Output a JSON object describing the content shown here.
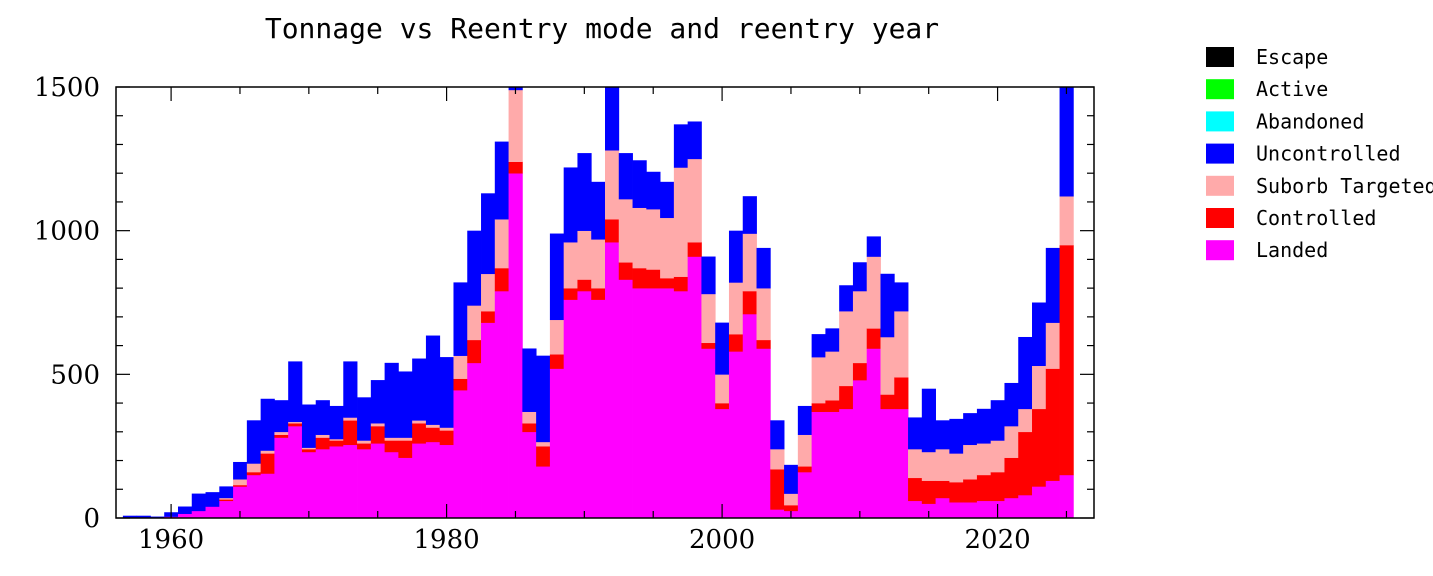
{
  "chart_data": {
    "type": "bar",
    "stacked": true,
    "title": "Tonnage vs Reentry mode and reentry year",
    "xlabel": "",
    "ylabel": "",
    "xlim": [
      1956,
      2027
    ],
    "ylim": [
      0,
      1500
    ],
    "x_ticks": [
      1960,
      1980,
      2000,
      2020
    ],
    "y_ticks": [
      0,
      500,
      1000,
      1500
    ],
    "grid": false,
    "legend_position": "right",
    "categories": [
      1957,
      1958,
      1959,
      1960,
      1961,
      1962,
      1963,
      1964,
      1965,
      1966,
      1967,
      1968,
      1969,
      1970,
      1971,
      1972,
      1973,
      1974,
      1975,
      1976,
      1977,
      1978,
      1979,
      1980,
      1981,
      1982,
      1983,
      1984,
      1985,
      1986,
      1987,
      1988,
      1989,
      1990,
      1991,
      1992,
      1993,
      1994,
      1995,
      1996,
      1997,
      1998,
      1999,
      2000,
      2001,
      2002,
      2003,
      2004,
      2005,
      2006,
      2007,
      2008,
      2009,
      2010,
      2011,
      2012,
      2013,
      2014,
      2015,
      2016,
      2017,
      2018,
      2019,
      2020,
      2021,
      2022,
      2023,
      2024,
      2025
    ],
    "series": [
      {
        "name": "Landed",
        "color": "#ff00ff",
        "values": [
          0,
          0,
          0,
          5,
          15,
          25,
          40,
          60,
          110,
          150,
          155,
          280,
          320,
          230,
          240,
          250,
          255,
          240,
          260,
          230,
          210,
          260,
          265,
          255,
          445,
          540,
          680,
          790,
          1200,
          300,
          180,
          520,
          760,
          790,
          760,
          960,
          830,
          800,
          800,
          800,
          790,
          910,
          590,
          380,
          580,
          710,
          590,
          30,
          25,
          160,
          370,
          370,
          380,
          480,
          590,
          380,
          380,
          60,
          50,
          70,
          55,
          55,
          60,
          60,
          70,
          80,
          110,
          130,
          150
        ]
      },
      {
        "name": "Controlled",
        "color": "#ff0000",
        "values": [
          0,
          0,
          0,
          0,
          0,
          0,
          0,
          5,
          5,
          10,
          70,
          10,
          10,
          10,
          40,
          20,
          85,
          20,
          60,
          40,
          60,
          70,
          50,
          50,
          40,
          80,
          40,
          80,
          40,
          30,
          70,
          50,
          40,
          40,
          40,
          80,
          60,
          70,
          65,
          35,
          50,
          50,
          20,
          20,
          60,
          80,
          30,
          140,
          20,
          20,
          30,
          40,
          80,
          60,
          70,
          50,
          110,
          80,
          80,
          60,
          70,
          80,
          90,
          100,
          140,
          220,
          270,
          390,
          800
        ]
      },
      {
        "name": "Suborb Targeted",
        "color": "#ffaaaa",
        "values": [
          0,
          0,
          0,
          0,
          0,
          0,
          0,
          5,
          20,
          30,
          10,
          10,
          5,
          5,
          10,
          5,
          10,
          10,
          10,
          10,
          10,
          10,
          10,
          10,
          80,
          120,
          130,
          170,
          250,
          40,
          15,
          120,
          160,
          170,
          170,
          240,
          220,
          210,
          210,
          210,
          380,
          290,
          170,
          100,
          180,
          200,
          180,
          70,
          40,
          110,
          160,
          170,
          260,
          250,
          250,
          200,
          230,
          100,
          100,
          110,
          100,
          120,
          110,
          110,
          110,
          80,
          150,
          160,
          170
        ]
      },
      {
        "name": "Uncontrolled",
        "color": "#0000ff",
        "values": [
          8,
          8,
          5,
          15,
          25,
          60,
          50,
          40,
          60,
          150,
          180,
          110,
          210,
          150,
          120,
          115,
          195,
          150,
          150,
          260,
          230,
          215,
          310,
          245,
          255,
          260,
          280,
          270,
          240,
          220,
          300,
          300,
          260,
          270,
          200,
          250,
          160,
          165,
          130,
          125,
          150,
          130,
          130,
          180,
          180,
          130,
          140,
          100,
          100,
          100,
          80,
          80,
          90,
          100,
          70,
          220,
          100,
          110,
          220,
          100,
          120,
          110,
          120,
          140,
          150,
          250,
          220,
          260,
          470
        ]
      },
      {
        "name": "Abandoned",
        "color": "#00ffff",
        "values": [
          0,
          0,
          0,
          0,
          0,
          0,
          0,
          0,
          0,
          0,
          0,
          0,
          0,
          0,
          0,
          0,
          0,
          0,
          0,
          0,
          0,
          0,
          0,
          0,
          0,
          0,
          0,
          0,
          0,
          0,
          0,
          0,
          0,
          0,
          0,
          0,
          0,
          0,
          0,
          0,
          0,
          0,
          0,
          0,
          0,
          0,
          0,
          0,
          0,
          0,
          0,
          0,
          0,
          0,
          0,
          0,
          0,
          0,
          0,
          0,
          0,
          0,
          0,
          0,
          0,
          0,
          0,
          0,
          0
        ]
      },
      {
        "name": "Active",
        "color": "#00ff00",
        "values": [
          0,
          0,
          0,
          0,
          0,
          0,
          0,
          0,
          0,
          0,
          0,
          0,
          0,
          0,
          0,
          0,
          0,
          0,
          0,
          0,
          0,
          0,
          0,
          0,
          0,
          0,
          0,
          0,
          0,
          0,
          0,
          0,
          0,
          0,
          0,
          0,
          0,
          0,
          0,
          0,
          0,
          0,
          0,
          0,
          0,
          0,
          0,
          0,
          0,
          0,
          0,
          0,
          0,
          0,
          0,
          0,
          0,
          0,
          0,
          0,
          0,
          0,
          0,
          0,
          0,
          0,
          0,
          0,
          0
        ]
      },
      {
        "name": "Escape",
        "color": "#000000",
        "values": [
          0,
          0,
          0,
          0,
          0,
          0,
          0,
          0,
          0,
          0,
          0,
          0,
          0,
          0,
          0,
          0,
          0,
          0,
          0,
          0,
          0,
          0,
          0,
          0,
          0,
          0,
          0,
          0,
          0,
          0,
          0,
          0,
          0,
          0,
          0,
          0,
          0,
          0,
          0,
          0,
          0,
          0,
          0,
          0,
          0,
          0,
          0,
          0,
          0,
          0,
          0,
          0,
          0,
          0,
          0,
          0,
          0,
          0,
          0,
          0,
          0,
          0,
          0,
          0,
          0,
          0,
          0,
          0,
          0
        ]
      }
    ],
    "legend": [
      "Escape",
      "Active",
      "Abandoned",
      "Uncontrolled",
      "Suborb Targeted",
      "Controlled",
      "Landed"
    ]
  }
}
